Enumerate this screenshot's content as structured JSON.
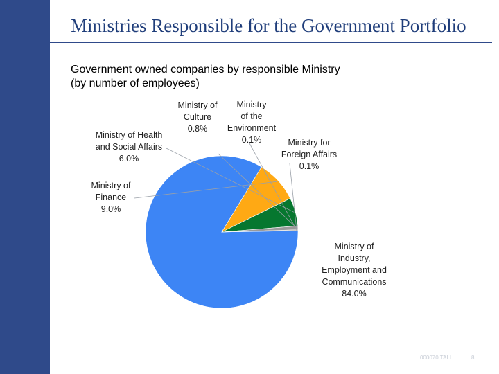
{
  "slide": {
    "title": "Ministries Responsible for the Government Portfolio",
    "footer_code": "000070 TALL",
    "page_number": "8"
  },
  "colors": {
    "sidebar": "#2f4a8a",
    "title_text": "#1f3d7a"
  },
  "chart_data": {
    "type": "pie",
    "title_lines": [
      "Government owned companies by responsible Ministry",
      "(by number of employees)"
    ],
    "slices": [
      {
        "label_lines": [
          "Ministry of",
          "Industry,",
          "Employment and",
          "Communications"
        ],
        "value_label": "84.0%",
        "value": 84.0,
        "color": "#3d85f5"
      },
      {
        "label_lines": [
          "Ministry of",
          "Finance"
        ],
        "value_label": "9.0%",
        "value": 9.0,
        "color": "#ffa914"
      },
      {
        "label_lines": [
          "Ministry of Health",
          "and Social Affairs"
        ],
        "value_label": "6.0%",
        "value": 6.0,
        "color": "#06772f"
      },
      {
        "label_lines": [
          "Ministry of",
          "Culture"
        ],
        "value_label": "0.8%",
        "value": 0.8,
        "color": "#9a9a9a"
      },
      {
        "label_lines": [
          "Ministry",
          "of the",
          "Environment"
        ],
        "value_label": "0.1%",
        "value": 0.1,
        "color": "#9a9a9a"
      },
      {
        "label_lines": [
          "Ministry for",
          "Foreign Affairs"
        ],
        "value_label": "0.1%",
        "value": 0.1,
        "color": "#9a9a9a"
      }
    ]
  }
}
